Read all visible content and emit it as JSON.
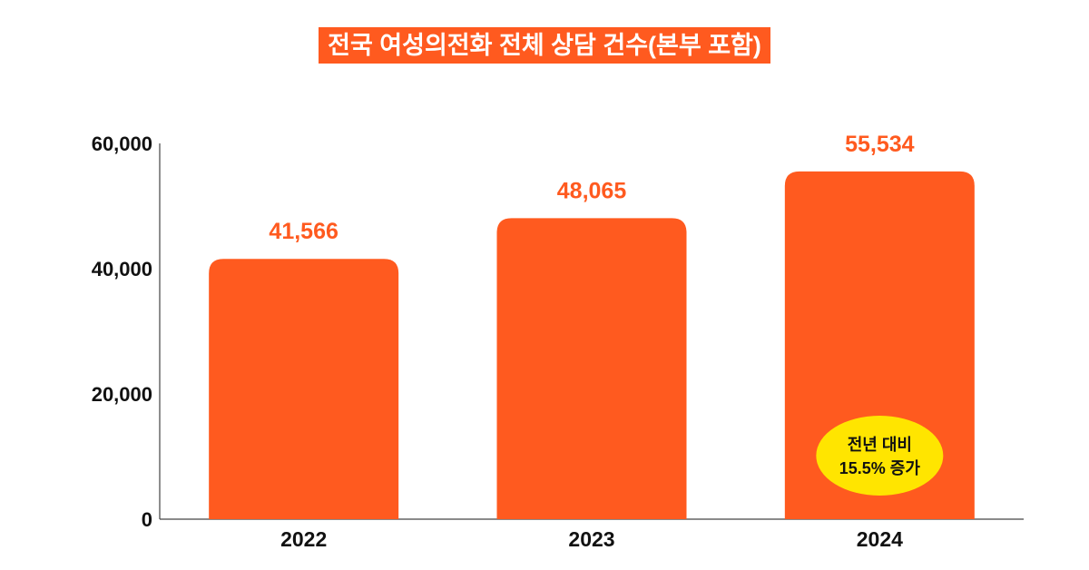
{
  "chart_title": "전국 여성의전화 전체 상담 건수(본부 포함)",
  "colors": {
    "bar": "#ff5a1f",
    "title_bg": "#ff5a1f",
    "data_label": "#ff5a1f",
    "badge": "#ffe500",
    "axis": "#444444",
    "text": "#111111"
  },
  "chart_data": {
    "type": "bar",
    "title": "전국 여성의전화 전체 상담 건수(본부 포함)",
    "categories": [
      "2022",
      "2023",
      "2024"
    ],
    "values": [
      41566,
      48065,
      55534
    ],
    "value_labels": [
      "41,566",
      "48,065",
      "55,534"
    ],
    "ylim": [
      0,
      60000
    ],
    "yticks": [
      0,
      20000,
      40000,
      60000
    ],
    "ytick_labels": [
      "0",
      "20,000",
      "40,000",
      "60,000"
    ],
    "xlabel": "",
    "ylabel": "",
    "grid": false,
    "annotation": {
      "category": "2024",
      "line1": "전년 대비",
      "line2": "15.5% 증가"
    }
  }
}
